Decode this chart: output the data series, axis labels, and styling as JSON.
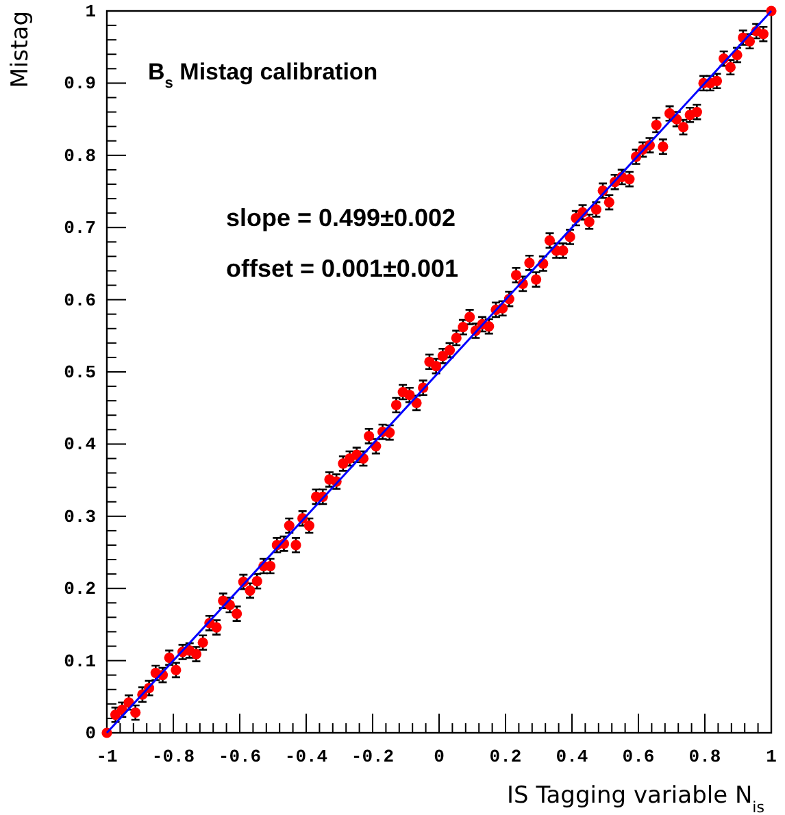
{
  "chart_data": {
    "type": "scatter",
    "title": "B$_{s}$ Mistag calibration",
    "xlabel": "IS Tagging variable N$_{is}$",
    "ylabel": "Mistag",
    "annotations": [
      "slope = 0.499±0.002",
      "offset = 0.001±0.001"
    ],
    "xlim": [
      -1,
      1
    ],
    "ylim": [
      0,
      1
    ],
    "xticks": [
      -1,
      -0.8,
      -0.6,
      -0.4,
      -0.2,
      0,
      0.2,
      0.4,
      0.6,
      0.8,
      1
    ],
    "yticks": [
      0,
      0.1,
      0.2,
      0.3,
      0.4,
      0.5,
      0.6,
      0.7,
      0.8,
      0.9,
      1
    ],
    "grid": false,
    "series": [
      {
        "color": "#ff0000",
        "marker": "circle",
        "x": [
          -1,
          -0.974,
          -0.954,
          -0.934,
          -0.914,
          -0.893,
          -0.873,
          -0.853,
          -0.832,
          -0.812,
          -0.792,
          -0.772,
          -0.751,
          -0.731,
          -0.711,
          -0.691,
          -0.67,
          -0.65,
          -0.63,
          -0.609,
          -0.589,
          -0.569,
          -0.548,
          -0.528,
          -0.508,
          -0.488,
          -0.467,
          -0.451,
          -0.431,
          -0.411,
          -0.391,
          -0.37,
          -0.35,
          -0.33,
          -0.309,
          -0.289,
          -0.269,
          -0.248,
          -0.228,
          -0.211,
          -0.19,
          -0.17,
          -0.149,
          -0.129,
          -0.109,
          -0.089,
          -0.068,
          -0.048,
          -0.029,
          -0.009,
          0.011,
          0.032,
          0.052,
          0.072,
          0.092,
          0.11,
          0.13,
          0.15,
          0.171,
          0.191,
          0.211,
          0.232,
          0.252,
          0.272,
          0.292,
          0.313,
          0.333,
          0.353,
          0.373,
          0.394,
          0.412,
          0.432,
          0.452,
          0.473,
          0.493,
          0.512,
          0.529,
          0.55,
          0.573,
          0.593,
          0.613,
          0.634,
          0.654,
          0.674,
          0.694,
          0.715,
          0.735,
          0.755,
          0.776,
          0.796,
          0.816,
          0.836,
          0.857,
          0.877,
          0.897,
          0.915,
          0.935,
          0.955,
          0.976,
          1
        ],
        "values": [
          0,
          0.025,
          0.032,
          0.042,
          0.028,
          0.053,
          0.062,
          0.083,
          0.08,
          0.104,
          0.087,
          0.112,
          0.114,
          0.109,
          0.125,
          0.152,
          0.146,
          0.183,
          0.177,
          0.165,
          0.209,
          0.197,
          0.21,
          0.231,
          0.231,
          0.26,
          0.262,
          0.287,
          0.26,
          0.297,
          0.287,
          0.327,
          0.327,
          0.351,
          0.348,
          0.373,
          0.38,
          0.385,
          0.38,
          0.411,
          0.397,
          0.417,
          0.416,
          0.454,
          0.472,
          0.468,
          0.457,
          0.478,
          0.514,
          0.508,
          0.522,
          0.53,
          0.547,
          0.562,
          0.576,
          0.557,
          0.566,
          0.563,
          0.586,
          0.588,
          0.601,
          0.634,
          0.622,
          0.651,
          0.628,
          0.65,
          0.682,
          0.668,
          0.668,
          0.687,
          0.713,
          0.721,
          0.708,
          0.725,
          0.751,
          0.735,
          0.763,
          0.77,
          0.767,
          0.798,
          0.808,
          0.814,
          0.842,
          0.812,
          0.858,
          0.85,
          0.839,
          0.856,
          0.86,
          0.9,
          0.9,
          0.903,
          0.934,
          0.922,
          0.939,
          0.963,
          0.958,
          0.972,
          0.968,
          1
        ],
        "errors": [
          null,
          0.01,
          0.01,
          0.01,
          0.01,
          0.01,
          0.01,
          0.01,
          0.01,
          0.01,
          0.01,
          0.01,
          0.01,
          0.01,
          0.01,
          0.01,
          0.01,
          0.01,
          0.01,
          0.01,
          0.01,
          0.01,
          0.01,
          0.01,
          0.01,
          0.01,
          0.01,
          0.01,
          0.01,
          0.01,
          0.01,
          0.01,
          0.01,
          0.01,
          0.01,
          0.01,
          0.01,
          0.01,
          0.01,
          0.01,
          0.01,
          0.01,
          0.01,
          0.01,
          0.01,
          0.01,
          0.01,
          0.01,
          0.01,
          0.01,
          0.01,
          0.01,
          0.01,
          0.01,
          0.01,
          0.01,
          0.01,
          0.01,
          0.01,
          0.01,
          0.01,
          0.01,
          0.01,
          0.01,
          0.01,
          0.01,
          0.01,
          0.01,
          0.01,
          0.01,
          0.01,
          0.01,
          0.01,
          0.01,
          0.01,
          0.01,
          0.01,
          0.01,
          0.01,
          0.01,
          0.01,
          0.01,
          0.01,
          0.01,
          0.01,
          0.01,
          0.01,
          0.01,
          0.01,
          0.01,
          0.01,
          0.01,
          0.01,
          0.01,
          0.01,
          0.01,
          0.01,
          0.01,
          0.01,
          null
        ]
      },
      {
        "type": "line",
        "color": "#0000ff",
        "x": [
          -1,
          1
        ],
        "values": [
          0,
          1
        ]
      }
    ]
  }
}
